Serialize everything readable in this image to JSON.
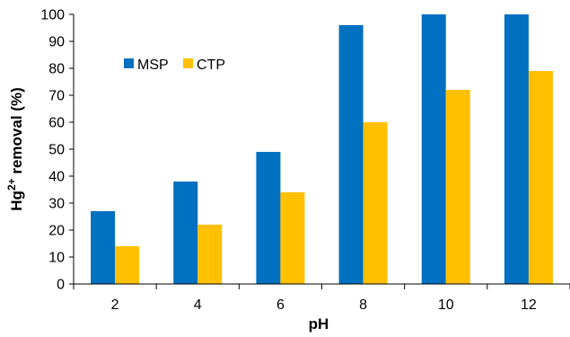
{
  "chart_data": {
    "type": "bar",
    "title": "",
    "xlabel": "pH",
    "ylabel_parts": {
      "main": "Hg",
      "superscript": "2+",
      "rest": " removal (%)"
    },
    "categories": [
      "2",
      "4",
      "6",
      "8",
      "10",
      "12"
    ],
    "ylim": [
      0,
      100
    ],
    "yticks": [
      "0",
      "10",
      "20",
      "30",
      "40",
      "50",
      "60",
      "70",
      "80",
      "90",
      "100"
    ],
    "grid": false,
    "legend_position": "top-left",
    "series": [
      {
        "name": "MSP",
        "color": "#0070C0",
        "values": [
          27,
          38,
          49,
          96,
          100,
          100
        ]
      },
      {
        "name": "CTP",
        "color": "#FFC000",
        "values": [
          14,
          22,
          34,
          60,
          72,
          79
        ]
      }
    ]
  }
}
